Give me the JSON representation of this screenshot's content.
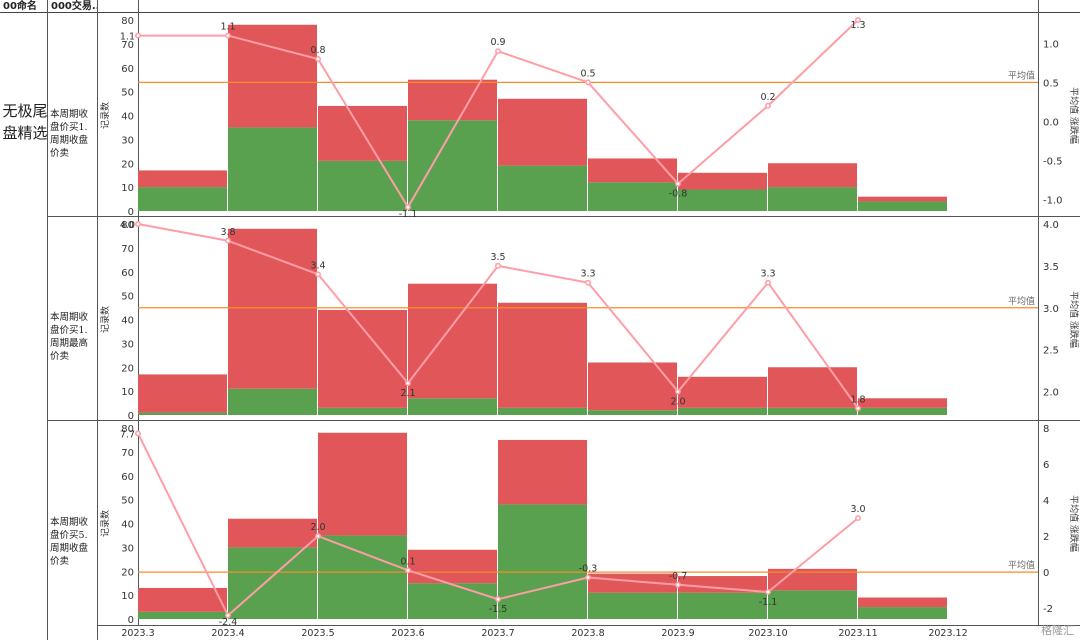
{
  "header": {
    "col1": "00命名",
    "col2": "000交易.."
  },
  "group_label": "无极尾盘精选",
  "x_categories": [
    "2023.3",
    "2023.4",
    "2023.5",
    "2023.6",
    "2023.7",
    "2023.8",
    "2023.9",
    "2023.10",
    "2023.11",
    "2023.12"
  ],
  "left_axis_label": "记录数",
  "right_axis_label": "平均值 涨跌幅",
  "avg_label": "平均值",
  "watermark": "格隆汇",
  "colors": {
    "bar_top": "#e15759",
    "bar_bottom": "#59a14f",
    "line": "#ff9da7",
    "avg_line": "#f28e2b"
  },
  "chart_data": [
    {
      "type": "bar",
      "row_label": "本周期收盘价买1.周期收盘价卖",
      "categories": [
        "2023.3",
        "2023.4",
        "2023.5",
        "2023.6",
        "2023.7",
        "2023.8",
        "2023.9",
        "2023.10",
        "2023.11"
      ],
      "series": [
        {
          "values": [
            10,
            35,
            21,
            38,
            19,
            12,
            9,
            10,
            4
          ]
        },
        {
          "values": [
            7,
            43,
            23,
            17,
            28,
            10,
            7,
            10,
            2
          ]
        }
      ],
      "line": {
        "values": [
          1.1,
          1.1,
          0.8,
          -1.1,
          0.9,
          0.5,
          -0.8,
          0.2,
          1.3
        ]
      },
      "avg_value": 0.5,
      "ylim": [
        0,
        80
      ],
      "y_ticks": [
        0,
        10,
        20,
        30,
        40,
        50,
        60,
        70,
        80
      ],
      "y2lim": [
        -1.15,
        1.3
      ],
      "y2_ticks": [
        -1.0,
        -0.5,
        0.0,
        0.5,
        1.0
      ],
      "y2_tick_labels": [
        "-1.0",
        "-0.5",
        "0.0",
        "0.5",
        "1.0"
      ]
    },
    {
      "type": "bar",
      "row_label": "本周期收盘价买1.周期最高价卖",
      "categories": [
        "2023.3",
        "2023.4",
        "2023.5",
        "2023.6",
        "2023.7",
        "2023.8",
        "2023.9",
        "2023.10",
        "2023.11"
      ],
      "series": [
        {
          "values": [
            1,
            11,
            3,
            7,
            3,
            2,
            3,
            3,
            3
          ]
        },
        {
          "values": [
            16,
            67,
            41,
            48,
            44,
            20,
            13,
            17,
            4
          ]
        }
      ],
      "line": {
        "values": [
          4.0,
          3.8,
          3.4,
          2.1,
          3.5,
          3.3,
          2.0,
          3.3,
          1.8
        ]
      },
      "avg_value": 3.0,
      "ylim": [
        0,
        80
      ],
      "y_ticks": [
        0,
        10,
        20,
        30,
        40,
        50,
        60,
        70,
        80
      ],
      "y2lim": [
        1.72,
        4.0
      ],
      "y2_ticks": [
        2.0,
        2.5,
        3.0,
        3.5,
        4.0
      ],
      "y2_tick_labels": [
        "2.0",
        "2.5",
        "3.0",
        "3.5",
        "4.0"
      ]
    },
    {
      "type": "bar",
      "row_label": "本周期收盘价买5.周期收盘价卖",
      "categories": [
        "2023.3",
        "2023.4",
        "2023.5",
        "2023.6",
        "2023.7",
        "2023.8",
        "2023.9",
        "2023.10",
        "2023.11"
      ],
      "series": [
        {
          "values": [
            3,
            30,
            35,
            15,
            48,
            11,
            11,
            12,
            5
          ]
        },
        {
          "values": [
            10,
            12,
            43,
            14,
            27,
            8,
            7,
            9,
            4
          ]
        }
      ],
      "line": {
        "values": [
          7.7,
          -2.4,
          2.0,
          0.1,
          -1.5,
          -0.3,
          -0.7,
          -1.1,
          3.0
        ]
      },
      "avg_value": 0,
      "ylim": [
        0,
        80
      ],
      "y_ticks": [
        0,
        10,
        20,
        30,
        40,
        50,
        60,
        70,
        80
      ],
      "y2lim": [
        -2.6,
        8.0
      ],
      "y2_ticks": [
        -2,
        0,
        2,
        4,
        6,
        8
      ],
      "y2_tick_labels": [
        "-2",
        "0",
        "2",
        "4",
        "6",
        "8"
      ]
    }
  ]
}
